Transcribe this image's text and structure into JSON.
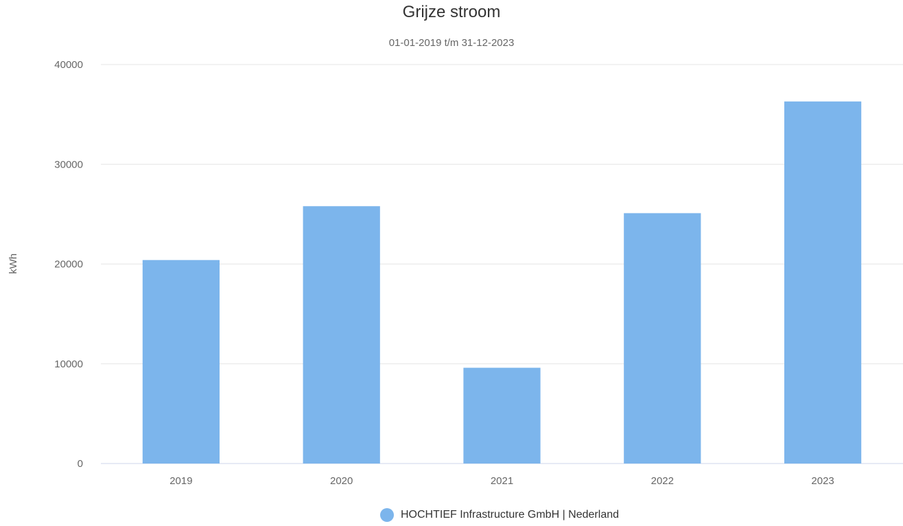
{
  "chart_data": {
    "type": "bar",
    "title": "Grijze stroom",
    "subtitle": "01-01-2019 t/m 31-12-2023",
    "categories": [
      "2019",
      "2020",
      "2021",
      "2022",
      "2023"
    ],
    "series": [
      {
        "name": "HOCHTIEF Infrastructure GmbH | Nederland",
        "values": [
          20400,
          25800,
          9600,
          25100,
          36300
        ],
        "color": "#7cb5ec"
      }
    ],
    "ylabel": "kWh",
    "xlabel": "",
    "ylim": [
      0,
      40000
    ],
    "yticks": [
      "0",
      "10000",
      "20000",
      "30000",
      "40000"
    ],
    "grid": true,
    "legend_position": "bottom-center"
  }
}
